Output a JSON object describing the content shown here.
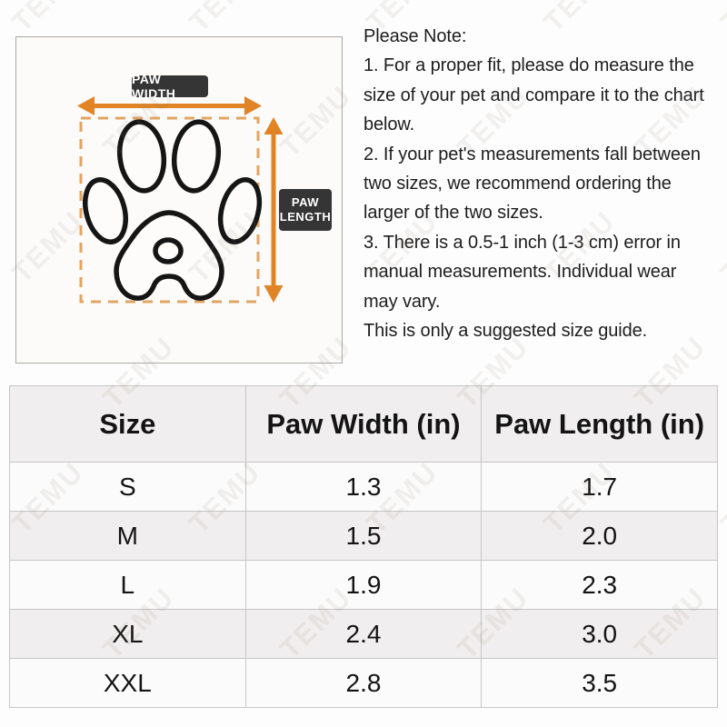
{
  "watermark": {
    "text": "TEMU"
  },
  "colors": {
    "accent_orange": "#e08426",
    "dash_orange": "#e2a463",
    "badge_background": "#353535",
    "badge_text": "#ffffff",
    "table_stripe": "#f0eeee",
    "table_border": "#c6c6c6"
  },
  "diagram": {
    "paw_width_label": "PAW WIDTH",
    "paw_length_label_line1": "PAW",
    "paw_length_label_line2": "LENGTH"
  },
  "note": {
    "title": "Please Note:",
    "lines": [
      "1. For a proper fit, please do measure the",
      "size of your pet and compare it to the chart",
      "below.",
      "2. If your pet's measurements fall between",
      "two sizes, we recommend ordering the",
      "larger of the two sizes.",
      "3. There is a 0.5-1 inch (1-3 cm) error in",
      "manual measurements. Individual wear",
      "may vary.",
      "This is only a suggested size guide."
    ]
  },
  "size_table": {
    "headers": [
      "Size",
      "Paw Width (in)",
      "Paw Length (in)"
    ],
    "rows": [
      {
        "size": "S",
        "paw_width": "1.3",
        "paw_length": "1.7"
      },
      {
        "size": "M",
        "paw_width": "1.5",
        "paw_length": "2.0"
      },
      {
        "size": "L",
        "paw_width": "1.9",
        "paw_length": "2.3"
      },
      {
        "size": "XL",
        "paw_width": "2.4",
        "paw_length": "3.0"
      },
      {
        "size": "XXL",
        "paw_width": "2.8",
        "paw_length": "3.5"
      }
    ]
  }
}
